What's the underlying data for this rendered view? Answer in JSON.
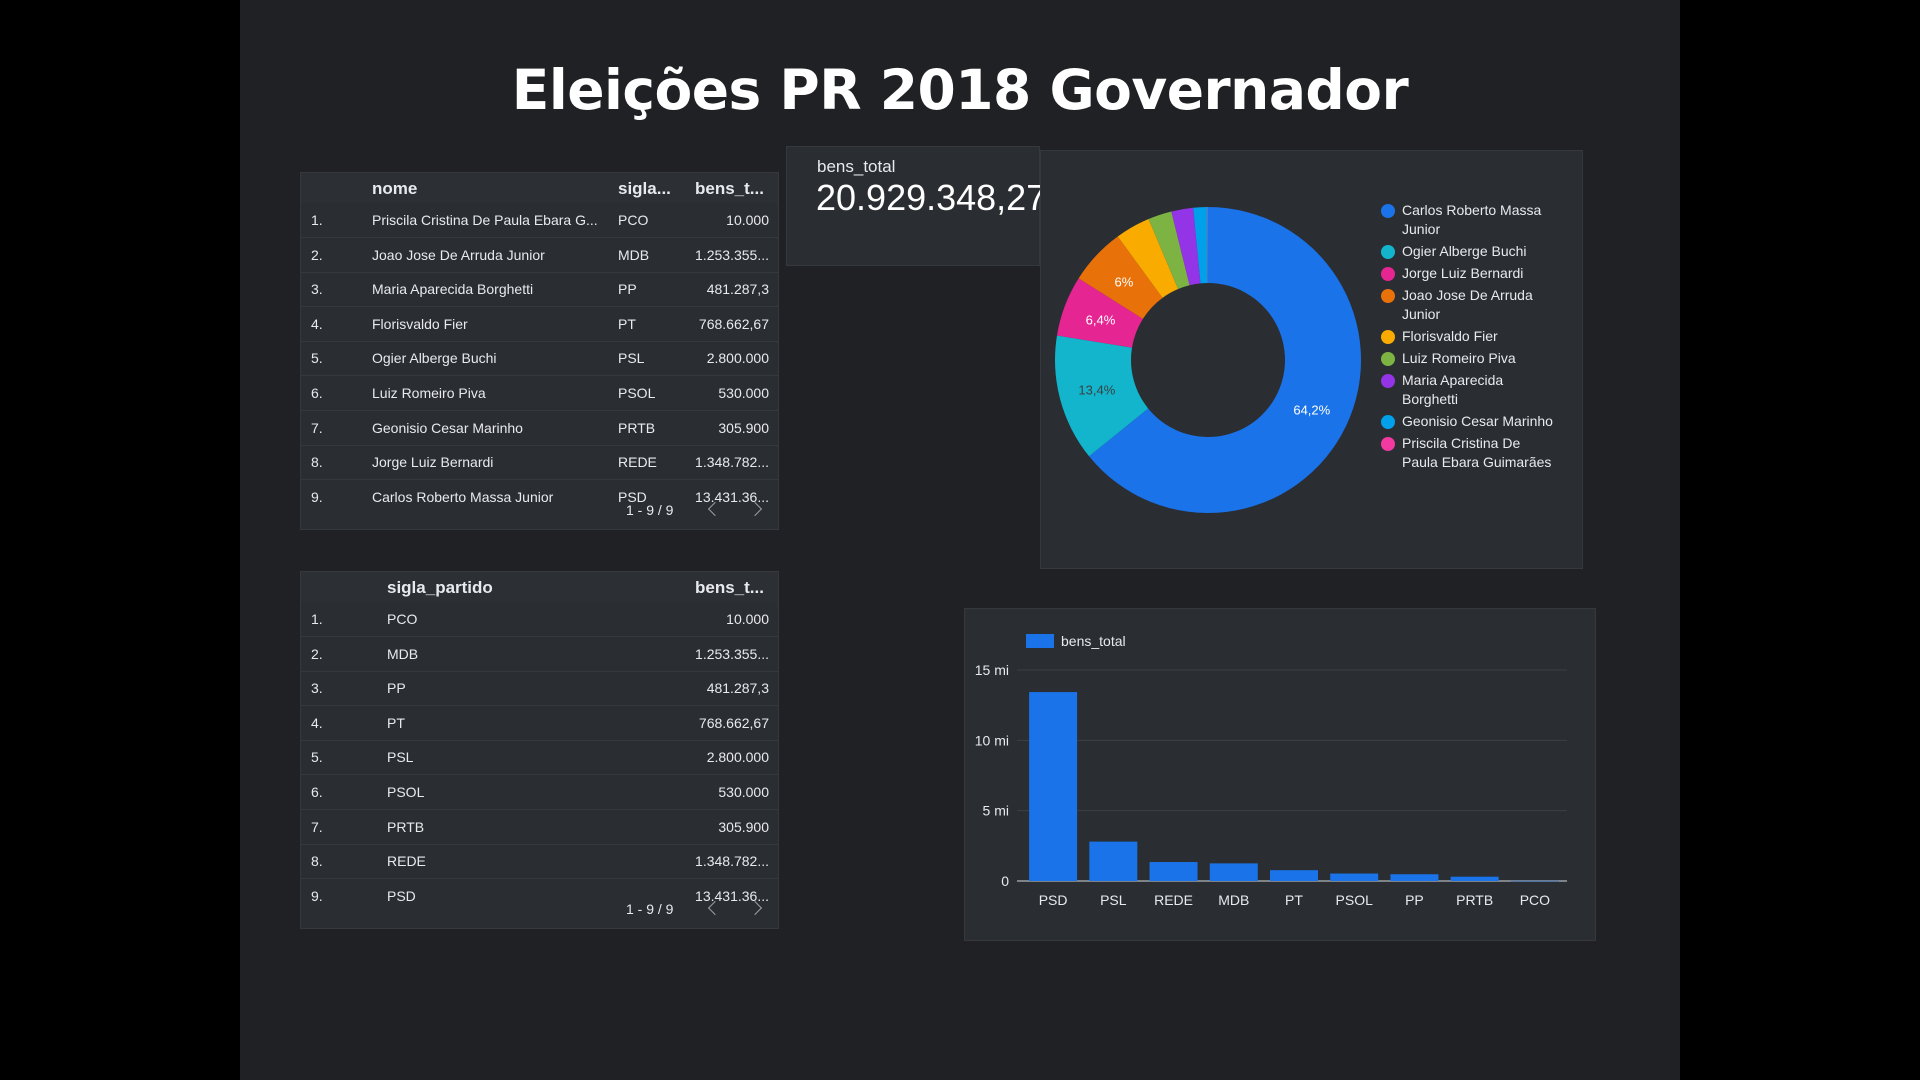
{
  "title": "Eleições PR 2018 Governador",
  "table1": {
    "headers": {
      "num": "",
      "nome": "nome",
      "sigla": "sigla...",
      "bens": "bens_t..."
    },
    "rows": [
      {
        "num": "1.",
        "nome": "Priscila Cristina De Paula Ebara G...",
        "sigla": "PCO",
        "bens": "10.000"
      },
      {
        "num": "2.",
        "nome": "Joao Jose De Arruda Junior",
        "sigla": "MDB",
        "bens": "1.253.355..."
      },
      {
        "num": "3.",
        "nome": "Maria Aparecida Borghetti",
        "sigla": "PP",
        "bens": "481.287,3"
      },
      {
        "num": "4.",
        "nome": "Florisvaldo Fier",
        "sigla": "PT",
        "bens": "768.662,67"
      },
      {
        "num": "5.",
        "nome": "Ogier Alberge Buchi",
        "sigla": "PSL",
        "bens": "2.800.000"
      },
      {
        "num": "6.",
        "nome": "Luiz Romeiro Piva",
        "sigla": "PSOL",
        "bens": "530.000"
      },
      {
        "num": "7.",
        "nome": "Geonisio Cesar Marinho",
        "sigla": "PRTB",
        "bens": "305.900"
      },
      {
        "num": "8.",
        "nome": "Jorge Luiz Bernardi",
        "sigla": "REDE",
        "bens": "1.348.782..."
      },
      {
        "num": "9.",
        "nome": "Carlos Roberto Massa Junior",
        "sigla": "PSD",
        "bens": "13.431.36..."
      }
    ],
    "pager": "1 - 9 / 9"
  },
  "table2": {
    "headers": {
      "num": "",
      "sigla": "sigla_partido",
      "bens": "bens_t..."
    },
    "rows": [
      {
        "num": "1.",
        "sigla": "PCO",
        "bens": "10.000"
      },
      {
        "num": "2.",
        "sigla": "MDB",
        "bens": "1.253.355..."
      },
      {
        "num": "3.",
        "sigla": "PP",
        "bens": "481.287,3"
      },
      {
        "num": "4.",
        "sigla": "PT",
        "bens": "768.662,67"
      },
      {
        "num": "5.",
        "sigla": "PSL",
        "bens": "2.800.000"
      },
      {
        "num": "6.",
        "sigla": "PSOL",
        "bens": "530.000"
      },
      {
        "num": "7.",
        "sigla": "PRTB",
        "bens": "305.900"
      },
      {
        "num": "8.",
        "sigla": "REDE",
        "bens": "1.348.782..."
      },
      {
        "num": "9.",
        "sigla": "PSD",
        "bens": "13.431.36..."
      }
    ],
    "pager": "1 - 9 / 9"
  },
  "scorecard": {
    "label": "bens_total",
    "value": "20.929.348,27"
  },
  "chart_data": [
    {
      "type": "pie",
      "donut": true,
      "legend_position": "right",
      "slices": [
        {
          "name": "Carlos Roberto Massa Junior",
          "value": 64.2,
          "label": "64,2%",
          "color": "#1a73e8"
        },
        {
          "name": "Ogier Alberge Buchi",
          "value": 13.4,
          "label": "13,4%",
          "color": "#12b5cb"
        },
        {
          "name": "Jorge Luiz Bernardi",
          "value": 6.4,
          "label": "6,4%",
          "color": "#e52592"
        },
        {
          "name": "Joao Jose De Arruda Junior",
          "value": 6.0,
          "label": "6%",
          "color": "#e8710a"
        },
        {
          "name": "Florisvaldo Fier",
          "value": 3.7,
          "label": "",
          "color": "#f9ab00"
        },
        {
          "name": "Luiz Romeiro Piva",
          "value": 2.5,
          "label": "",
          "color": "#7cb342"
        },
        {
          "name": "Maria Aparecida Borghetti",
          "value": 2.3,
          "label": "",
          "color": "#9334e6"
        },
        {
          "name": "Geonisio Cesar Marinho",
          "value": 1.5,
          "label": "",
          "color": "#00a0ea"
        },
        {
          "name": "Priscila Cristina De Paula Ebara Guimarães",
          "value": 0.05,
          "label": "",
          "color": "#f439a0"
        }
      ]
    },
    {
      "type": "bar",
      "categories": [
        "PSD",
        "PSL",
        "REDE",
        "MDB",
        "PT",
        "PSOL",
        "PP",
        "PRTB",
        "PCO"
      ],
      "series": [
        {
          "name": "bens_total",
          "color": "#1a73e8",
          "values": [
            13431361,
            2800000,
            1348782,
            1253355,
            768662.67,
            530000,
            481287.3,
            305900,
            10000
          ]
        }
      ],
      "yticks": [
        {
          "value": 0,
          "label": "0"
        },
        {
          "value": 5000000,
          "label": "5 mi"
        },
        {
          "value": 10000000,
          "label": "10 mi"
        },
        {
          "value": 15000000,
          "label": "15 mi"
        }
      ],
      "ylim": [
        0,
        15000000
      ],
      "legend_position": "top-left",
      "grid": true
    }
  ]
}
